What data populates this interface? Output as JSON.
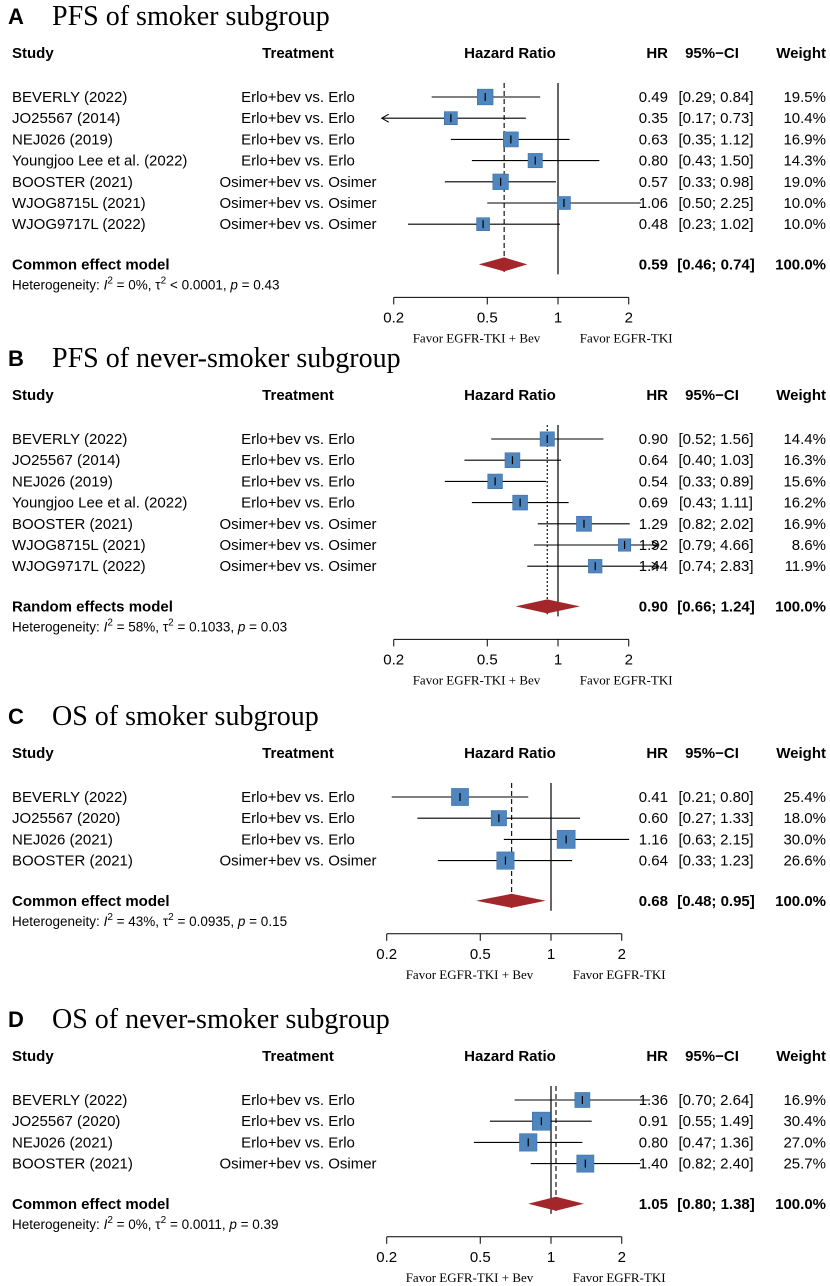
{
  "colors": {
    "box": "#4f86be",
    "box_stroke": "#3a6fa6",
    "diamond": "#a3262a",
    "line": "#000000"
  },
  "columns": {
    "study": "Study",
    "treatment": "Treatment",
    "plot": "Hazard Ratio",
    "hr": "HR",
    "ci": "95%−CI",
    "weight": "Weight"
  },
  "axis": {
    "ticks": [
      0.2,
      0.5,
      1,
      2
    ],
    "tick_labels": [
      "0.2",
      "0.5",
      "1",
      "2"
    ],
    "left_label": "Favor EGFR-TKI + Bev",
    "right_label": "Favor EGFR-TKI",
    "scale": "log"
  },
  "chart_data": [
    {
      "type": "forest",
      "letter": "A",
      "title": "PFS of smoker subgroup",
      "studies": [
        {
          "study": "BEVERLY (2022)",
          "treatment": "Erlo+bev vs. Erlo",
          "hr": 0.49,
          "lower": 0.29,
          "upper": 0.84,
          "weight": 19.5,
          "hr_text": "0.49",
          "ci_text": "[0.29; 0.84]",
          "weight_text": "19.5%"
        },
        {
          "study": "JO25567 (2014)",
          "treatment": "Erlo+bev vs. Erlo",
          "hr": 0.35,
          "lower": 0.17,
          "upper": 0.73,
          "weight": 10.4,
          "hr_text": "0.35",
          "ci_text": "[0.17; 0.73]",
          "weight_text": "10.4%"
        },
        {
          "study": "NEJ026 (2019)",
          "treatment": "Erlo+bev vs. Erlo",
          "hr": 0.63,
          "lower": 0.35,
          "upper": 1.12,
          "weight": 16.9,
          "hr_text": "0.63",
          "ci_text": "[0.35; 1.12]",
          "weight_text": "16.9%"
        },
        {
          "study": "Youngjoo Lee et al. (2022)",
          "treatment": "Erlo+bev vs. Erlo",
          "hr": 0.8,
          "lower": 0.43,
          "upper": 1.5,
          "weight": 14.3,
          "hr_text": "0.80",
          "ci_text": "[0.43; 1.50]",
          "weight_text": "14.3%"
        },
        {
          "study": "BOOSTER (2021)",
          "treatment": "Osimer+bev vs. Osimer",
          "hr": 0.57,
          "lower": 0.33,
          "upper": 0.98,
          "weight": 19.0,
          "hr_text": "0.57",
          "ci_text": "[0.33; 0.98]",
          "weight_text": "19.0%"
        },
        {
          "study": "WJOG8715L (2021)",
          "treatment": "Osimer+bev vs. Osimer",
          "hr": 1.06,
          "lower": 0.5,
          "upper": 2.25,
          "weight": 10.0,
          "hr_text": "1.06",
          "ci_text": "[0.50; 2.25]",
          "weight_text": "10.0%"
        },
        {
          "study": "WJOG9717L (2022)",
          "treatment": "Osimer+bev vs. Osimer",
          "hr": 0.48,
          "lower": 0.23,
          "upper": 1.02,
          "weight": 10.0,
          "hr_text": "0.48",
          "ci_text": "[0.23; 1.02]",
          "weight_text": "10.0%"
        }
      ],
      "summary": {
        "label": "Common effect model",
        "hr": 0.59,
        "lower": 0.46,
        "upper": 0.74,
        "hr_text": "0.59",
        "ci_text": "[0.46; 0.74]",
        "weight_text": "100.0%"
      },
      "heterogeneity": {
        "prefix": "Heterogeneity: ",
        "i2": "I",
        "i2_value": " = 0%, ",
        "tau": "τ",
        "tau_value": " < 0.0001, ",
        "p": "p",
        "p_value": " = 0.43"
      }
    },
    {
      "type": "forest",
      "letter": "B",
      "title": "PFS of never-smoker subgroup",
      "studies": [
        {
          "study": "BEVERLY (2022)",
          "treatment": "Erlo+bev vs. Erlo",
          "hr": 0.9,
          "lower": 0.52,
          "upper": 1.56,
          "weight": 14.4,
          "hr_text": "0.90",
          "ci_text": "[0.52; 1.56]",
          "weight_text": "14.4%"
        },
        {
          "study": "JO25567 (2014)",
          "treatment": "Erlo+bev vs. Erlo",
          "hr": 0.64,
          "lower": 0.4,
          "upper": 1.03,
          "weight": 16.3,
          "hr_text": "0.64",
          "ci_text": "[0.40; 1.03]",
          "weight_text": "16.3%"
        },
        {
          "study": "NEJ026 (2019)",
          "treatment": "Erlo+bev vs. Erlo",
          "hr": 0.54,
          "lower": 0.33,
          "upper": 0.89,
          "weight": 15.6,
          "hr_text": "0.54",
          "ci_text": "[0.33; 0.89]",
          "weight_text": "15.6%"
        },
        {
          "study": "Youngjoo Lee et al. (2022)",
          "treatment": "Erlo+bev vs. Erlo",
          "hr": 0.69,
          "lower": 0.43,
          "upper": 1.11,
          "weight": 16.2,
          "hr_text": "0.69",
          "ci_text": "[0.43; 1.11]",
          "weight_text": "16.2%"
        },
        {
          "study": "BOOSTER (2021)",
          "treatment": "Osimer+bev vs. Osimer",
          "hr": 1.29,
          "lower": 0.82,
          "upper": 2.02,
          "weight": 16.9,
          "hr_text": "1.29",
          "ci_text": "[0.82; 2.02]",
          "weight_text": "16.9%"
        },
        {
          "study": "WJOG8715L (2021)",
          "treatment": "Osimer+bev vs. Osimer",
          "hr": 1.92,
          "lower": 0.79,
          "upper": 4.66,
          "weight": 8.6,
          "hr_text": "1.92",
          "ci_text": "[0.79; 4.66]",
          "weight_text": "8.6%"
        },
        {
          "study": "WJOG9717L (2022)",
          "treatment": "Osimer+bev vs. Osimer",
          "hr": 1.44,
          "lower": 0.74,
          "upper": 2.83,
          "weight": 11.9,
          "hr_text": "1.44",
          "ci_text": "[0.74; 2.83]",
          "weight_text": "11.9%"
        }
      ],
      "summary": {
        "label": "Random effects model",
        "hr": 0.9,
        "lower": 0.66,
        "upper": 1.24,
        "hr_text": "0.90",
        "ci_text": "[0.66; 1.24]",
        "weight_text": "100.0%"
      },
      "heterogeneity": {
        "prefix": "Heterogeneity: ",
        "i2": "I",
        "i2_value": " = 58%, ",
        "tau": "τ",
        "tau_value": " = 0.1033, ",
        "p": "p",
        "p_value": " = 0.03"
      }
    },
    {
      "type": "forest",
      "letter": "C",
      "title": "OS of smoker subgroup",
      "studies": [
        {
          "study": "BEVERLY (2022)",
          "treatment": "Erlo+bev vs. Erlo",
          "hr": 0.41,
          "lower": 0.21,
          "upper": 0.8,
          "weight": 25.4,
          "hr_text": "0.41",
          "ci_text": "[0.21; 0.80]",
          "weight_text": "25.4%"
        },
        {
          "study": "JO25567 (2020)",
          "treatment": "Erlo+bev vs. Erlo",
          "hr": 0.6,
          "lower": 0.27,
          "upper": 1.33,
          "weight": 18.0,
          "hr_text": "0.60",
          "ci_text": "[0.27; 1.33]",
          "weight_text": "18.0%"
        },
        {
          "study": "NEJ026 (2021)",
          "treatment": "Erlo+bev vs. Erlo",
          "hr": 1.16,
          "lower": 0.63,
          "upper": 2.15,
          "weight": 30.0,
          "hr_text": "1.16",
          "ci_text": "[0.63; 2.15]",
          "weight_text": "30.0%"
        },
        {
          "study": "BOOSTER (2021)",
          "treatment": "Osimer+bev vs. Osimer",
          "hr": 0.64,
          "lower": 0.33,
          "upper": 1.23,
          "weight": 26.6,
          "hr_text": "0.64",
          "ci_text": "[0.33; 1.23]",
          "weight_text": "26.6%"
        }
      ],
      "summary": {
        "label": "Common effect model",
        "hr": 0.68,
        "lower": 0.48,
        "upper": 0.95,
        "hr_text": "0.68",
        "ci_text": "[0.48; 0.95]",
        "weight_text": "100.0%"
      },
      "heterogeneity": {
        "prefix": "Heterogeneity: ",
        "i2": "I",
        "i2_value": " = 43%, ",
        "tau": "τ",
        "tau_value": " = 0.0935, ",
        "p": "p",
        "p_value": " = 0.15"
      }
    },
    {
      "type": "forest",
      "letter": "D",
      "title": "OS of never-smoker subgroup",
      "studies": [
        {
          "study": "BEVERLY (2022)",
          "treatment": "Erlo+bev vs. Erlo",
          "hr": 1.36,
          "lower": 0.7,
          "upper": 2.64,
          "weight": 16.9,
          "hr_text": "1.36",
          "ci_text": "[0.70; 2.64]",
          "weight_text": "16.9%"
        },
        {
          "study": "JO25567 (2020)",
          "treatment": "Erlo+bev vs. Erlo",
          "hr": 0.91,
          "lower": 0.55,
          "upper": 1.49,
          "weight": 30.4,
          "hr_text": "0.91",
          "ci_text": "[0.55; 1.49]",
          "weight_text": "30.4%"
        },
        {
          "study": "NEJ026 (2021)",
          "treatment": "Erlo+bev vs. Erlo",
          "hr": 0.8,
          "lower": 0.47,
          "upper": 1.36,
          "weight": 27.0,
          "hr_text": "0.80",
          "ci_text": "[0.47; 1.36]",
          "weight_text": "27.0%"
        },
        {
          "study": "BOOSTER (2021)",
          "treatment": "Osimer+bev vs. Osimer",
          "hr": 1.4,
          "lower": 0.82,
          "upper": 2.4,
          "weight": 25.7,
          "hr_text": "1.40",
          "ci_text": "[0.82; 2.40]",
          "weight_text": "25.7%"
        }
      ],
      "summary": {
        "label": "Common effect model",
        "hr": 1.05,
        "lower": 0.8,
        "upper": 1.38,
        "hr_text": "1.05",
        "ci_text": "[0.80; 1.38]",
        "weight_text": "100.0%"
      },
      "heterogeneity": {
        "prefix": "Heterogeneity: ",
        "i2": "I",
        "i2_value": " = 0%, ",
        "tau": "τ",
        "tau_value": " = 0.0011, ",
        "p": "p",
        "p_value": " = 0.39"
      }
    }
  ]
}
